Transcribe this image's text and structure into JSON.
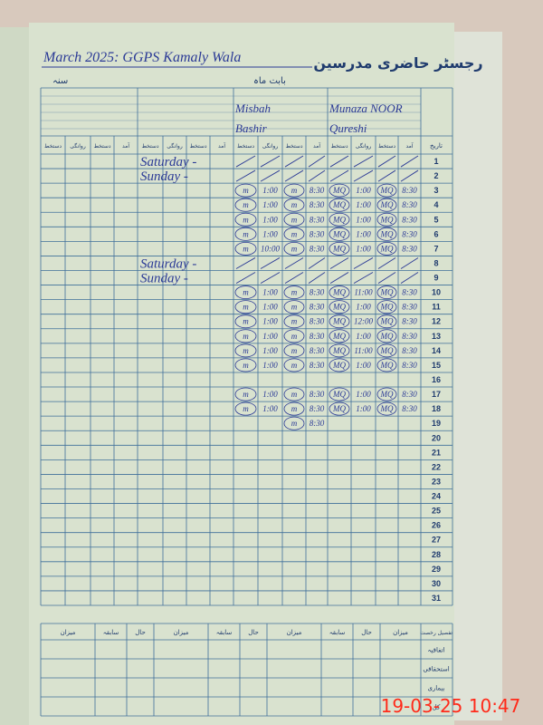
{
  "header": {
    "title": "March 2025: GGPS Kamaly Wala",
    "urdu_title": "رجسٹر حاضری مدرسین",
    "month_label": "بابت ماہ",
    "year_label": "سنہ"
  },
  "teachers": [
    {
      "name_line1": "Misbah",
      "name_line2": "Bashir"
    },
    {
      "name_line1": "Munaza NOOR",
      "name_line2": "Qureshi"
    }
  ],
  "column_headers": [
    "آمد",
    "دستخط",
    "روانگی",
    "دستخط"
  ],
  "date_header": "تاریخ",
  "rows": [
    {
      "day": 1,
      "note": "Saturday -",
      "cells": null
    },
    {
      "day": 2,
      "note": "Sunday -",
      "cells": null
    },
    {
      "day": 3,
      "note": null,
      "cells": [
        "m",
        "1:00",
        "m",
        "8:30",
        "MQ",
        "1:00",
        "MQ",
        "8:30"
      ]
    },
    {
      "day": 4,
      "note": null,
      "cells": [
        "m",
        "1:00",
        "m",
        "8:30",
        "MQ",
        "1:00",
        "MQ",
        "8:30"
      ]
    },
    {
      "day": 5,
      "note": null,
      "cells": [
        "m",
        "1:00",
        "m",
        "8:30",
        "MQ",
        "1:00",
        "MQ",
        "8:30"
      ]
    },
    {
      "day": 6,
      "note": null,
      "cells": [
        "m",
        "1:00",
        "m",
        "8:30",
        "MQ",
        "1:00",
        "MQ",
        "8:30"
      ]
    },
    {
      "day": 7,
      "note": null,
      "cells": [
        "m",
        "10:00",
        "m",
        "8:30",
        "MQ",
        "1:00",
        "MQ",
        "8:30"
      ]
    },
    {
      "day": 8,
      "note": "Saturday -",
      "cells": null
    },
    {
      "day": 9,
      "note": "Sunday -",
      "cells": null
    },
    {
      "day": 10,
      "note": null,
      "cells": [
        "m",
        "1:00",
        "m",
        "8:30",
        "MQ",
        "11:00",
        "MQ",
        "8:30"
      ]
    },
    {
      "day": 11,
      "note": null,
      "cells": [
        "m",
        "1:00",
        "m",
        "8:30",
        "MQ",
        "1:00",
        "MQ",
        "8:30"
      ]
    },
    {
      "day": 12,
      "note": null,
      "cells": [
        "m",
        "1:00",
        "m",
        "8:30",
        "MQ",
        "12:00",
        "MQ",
        "8:30"
      ]
    },
    {
      "day": 13,
      "note": null,
      "cells": [
        "m",
        "1:00",
        "m",
        "8:30",
        "MQ",
        "1:00",
        "MQ",
        "8:30"
      ]
    },
    {
      "day": 14,
      "note": null,
      "cells": [
        "m",
        "1:00",
        "m",
        "8:30",
        "MQ",
        "11:00",
        "MQ",
        "8:30"
      ]
    },
    {
      "day": 15,
      "note": null,
      "cells": [
        "m",
        "1:00",
        "m",
        "8:30",
        "MQ",
        "1:00",
        "MQ",
        "8:30"
      ]
    },
    {
      "day": 16,
      "note": null,
      "cells": null
    },
    {
      "day": 17,
      "note": null,
      "cells": [
        "m",
        "1:00",
        "m",
        "8:30",
        "MQ",
        "1:00",
        "MQ",
        "8:30"
      ]
    },
    {
      "day": 18,
      "note": null,
      "cells": [
        "m",
        "1:00",
        "m",
        "8:30",
        "MQ",
        "1:00",
        "MQ",
        "8:30"
      ]
    },
    {
      "day": 19,
      "note": null,
      "cells": [
        null,
        null,
        "m",
        "8:30",
        null,
        null,
        null,
        null
      ]
    },
    {
      "day": 20,
      "note": null,
      "cells": null
    },
    {
      "day": 21,
      "note": null,
      "cells": null
    },
    {
      "day": 22,
      "note": null,
      "cells": null
    },
    {
      "day": 23,
      "note": null,
      "cells": null
    },
    {
      "day": 24,
      "note": null,
      "cells": null
    },
    {
      "day": 25,
      "note": null,
      "cells": null
    },
    {
      "day": 26,
      "note": null,
      "cells": null
    },
    {
      "day": 27,
      "note": null,
      "cells": null
    },
    {
      "day": 28,
      "note": null,
      "cells": null
    },
    {
      "day": 29,
      "note": null,
      "cells": null
    },
    {
      "day": 30,
      "note": null,
      "cells": null
    },
    {
      "day": 31,
      "note": null,
      "cells": null
    }
  ],
  "summary": {
    "header": "تفصیل رخصت",
    "columns": [
      "حال",
      "سابقہ",
      "میزان"
    ],
    "row_labels": [
      "اتفاقیہ",
      "استحقاقی",
      "بیماری",
      "کل"
    ]
  },
  "timestamp": "19-03-25 10:47"
}
